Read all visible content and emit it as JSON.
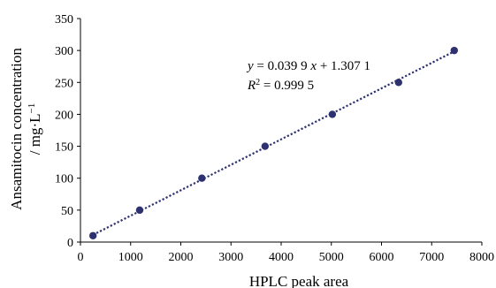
{
  "chart_data": {
    "type": "scatter",
    "title": "",
    "xlabel": "HPLC peak area",
    "ylabel_line1": "Ansamitocin concentration",
    "ylabel_line2_prefix": "/ mg·L",
    "ylabel_line2_sup": "−1",
    "xlim": [
      0,
      8000
    ],
    "ylim": [
      0,
      350
    ],
    "x_ticks": [
      0,
      1000,
      2000,
      3000,
      4000,
      5000,
      6000,
      7000,
      8000
    ],
    "y_ticks": [
      0,
      50,
      100,
      150,
      200,
      250,
      300,
      350
    ],
    "grid": false,
    "legend": "none",
    "marker_color": "#2E3170",
    "trendline_color": "#2E3170",
    "points": [
      {
        "x": 250,
        "y": 10
      },
      {
        "x": 1180,
        "y": 50
      },
      {
        "x": 2420,
        "y": 100
      },
      {
        "x": 3680,
        "y": 150
      },
      {
        "x": 5020,
        "y": 200
      },
      {
        "x": 6340,
        "y": 250
      },
      {
        "x": 7450,
        "y": 300
      }
    ],
    "trendline": {
      "slope": 0.0399,
      "intercept": 1.3071,
      "x_range": [
        250,
        7450
      ]
    },
    "equation": {
      "y_var": "y",
      "eq_middle": " = 0.039 9 ",
      "x_var": "x",
      "eq_tail": " + 1.307 1",
      "r_base": "R",
      "r_sup": "2",
      "r_tail": " = 0.999 5"
    }
  }
}
